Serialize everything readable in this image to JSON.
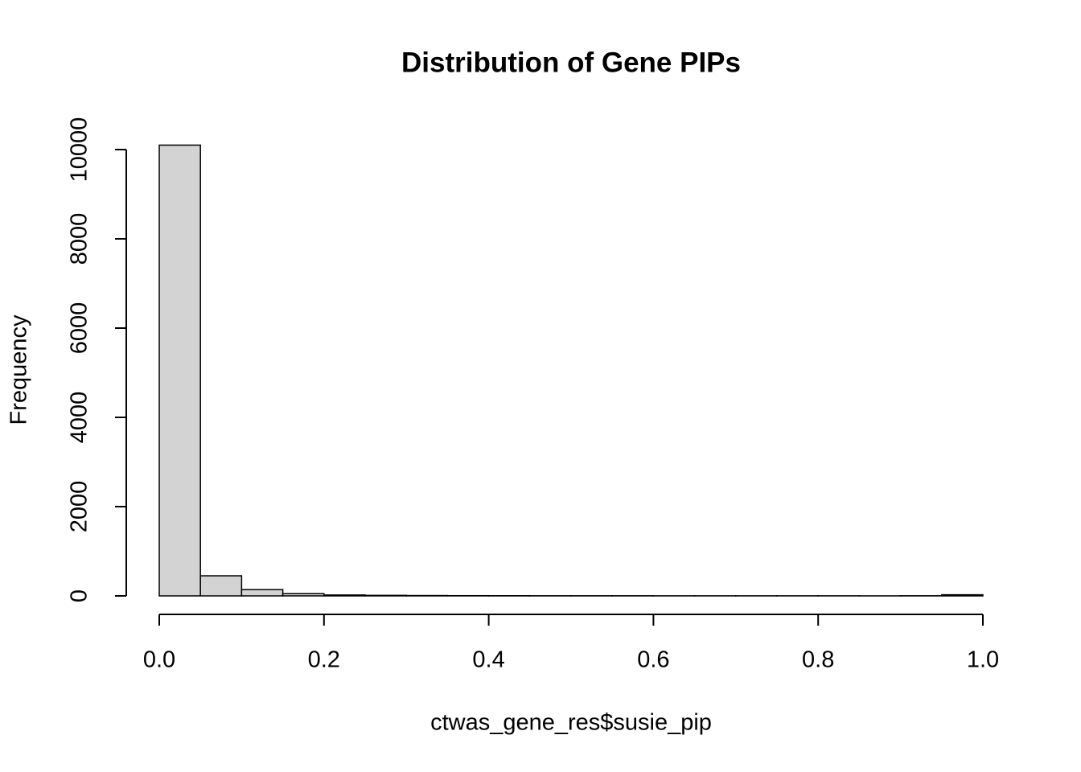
{
  "chart_data": {
    "type": "histogram",
    "title": "Distribution of Gene PIPs",
    "xlabel": "ctwas_gene_res$susie_pip",
    "ylabel": "Frequency",
    "bins": [
      0,
      0.05,
      0.1,
      0.15,
      0.2,
      0.25,
      0.3,
      0.35,
      0.4,
      0.45,
      0.5,
      0.55,
      0.6,
      0.65,
      0.7,
      0.75,
      0.8,
      0.85,
      0.9,
      0.95,
      1
    ],
    "counts": [
      10100,
      450,
      140,
      50,
      20,
      12,
      8,
      5,
      4,
      3,
      3,
      3,
      2,
      2,
      2,
      2,
      2,
      1,
      3,
      25
    ],
    "color": "#d3d3d3",
    "xlim": [
      0,
      1
    ],
    "xticks": [
      {
        "value": 0,
        "label": "0.0"
      },
      0.2,
      0.4,
      0.6,
      0.8,
      {
        "value": 1,
        "label": "1.0"
      }
    ],
    "ylim": [
      0,
      10000
    ],
    "yticks": [
      0,
      2000,
      4000,
      6000,
      8000,
      10000
    ]
  }
}
